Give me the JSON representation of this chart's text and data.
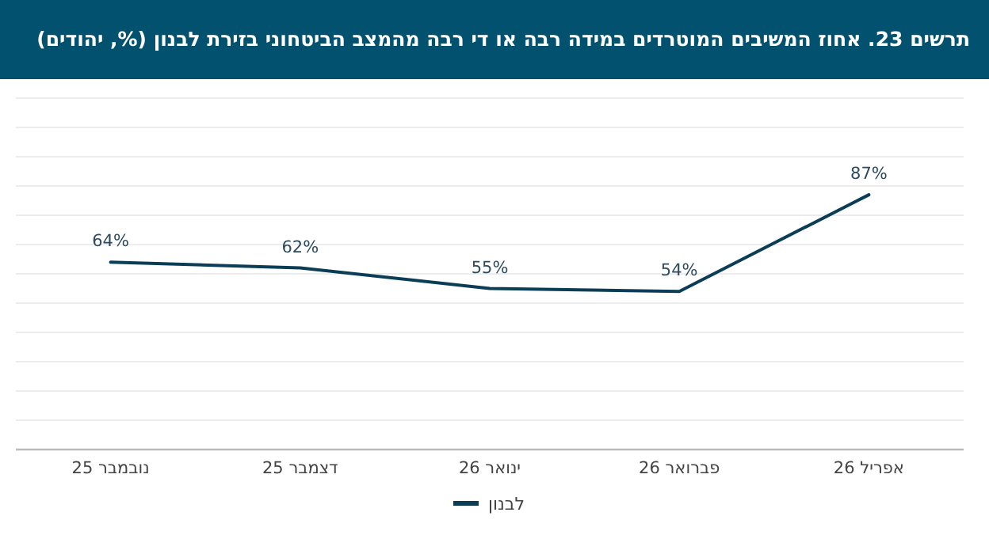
{
  "chart_data": {
    "type": "line",
    "title": "תרשים 23. אחוז המשיבים המוטרדים במידה רבה או די רבה מהמצב הביטחוני בזירת לבנון (%, יהודים)",
    "categories": [
      "נובמבר 25",
      "דצמבר 25",
      "ינואר 26",
      "פברואר 26",
      "אפריל 26"
    ],
    "series": [
      {
        "name": "לבנון",
        "color": "#0b3d56",
        "values": [
          64,
          62,
          55,
          54,
          87
        ],
        "value_labels": [
          "64%",
          "62%",
          "55%",
          "54%",
          "87%"
        ]
      }
    ],
    "tick_labels": "x",
    "grid": "y",
    "legend": "bottom",
    "marker": "none",
    "line_style": "solid"
  }
}
